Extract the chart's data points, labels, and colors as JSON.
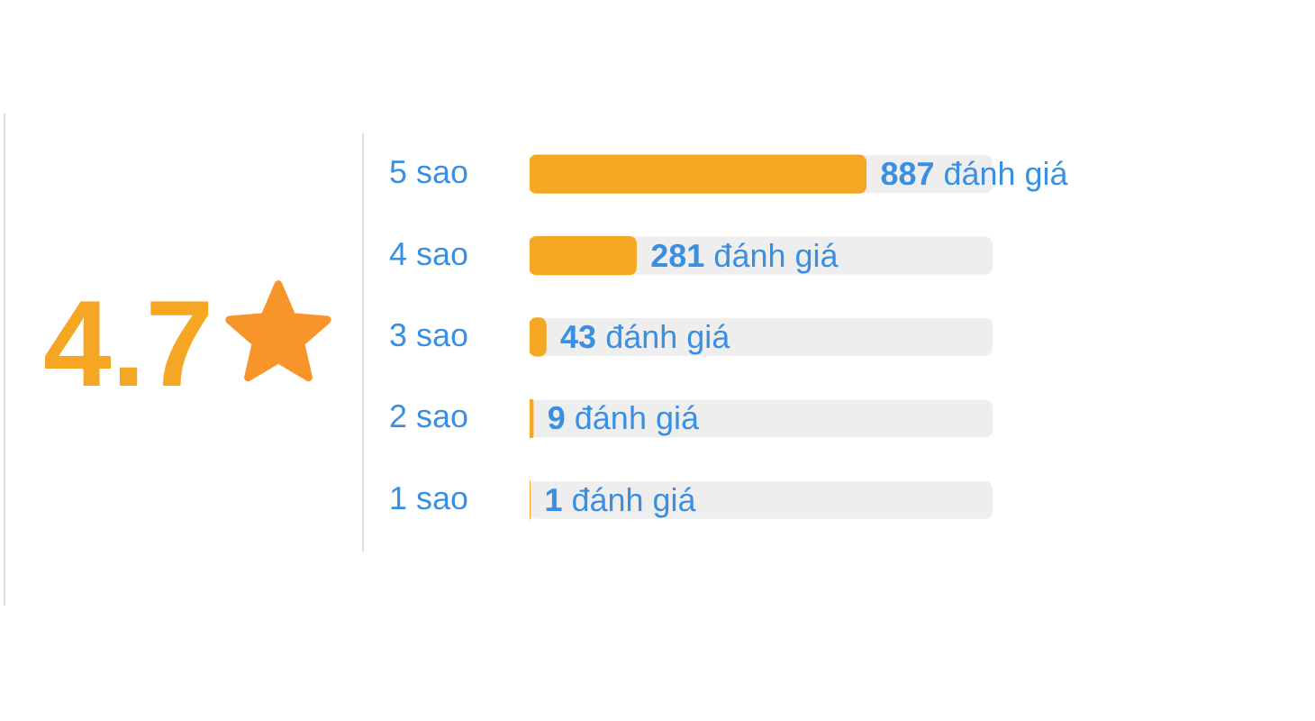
{
  "chart_data": {
    "type": "bar",
    "orientation": "horizontal",
    "categories": [
      "5 sao",
      "4 sao",
      "3 sao",
      "2 sao",
      "1 sao"
    ],
    "values": [
      887,
      281,
      43,
      9,
      1
    ],
    "color": "#f5a623",
    "tick_labels": "y",
    "value_labels": [
      "887 đánh giá",
      "281 đánh giá",
      "43 đánh giá",
      "9 đánh giá",
      "1 đánh giá"
    ],
    "annotations": [
      "4.7"
    ]
  }
}
